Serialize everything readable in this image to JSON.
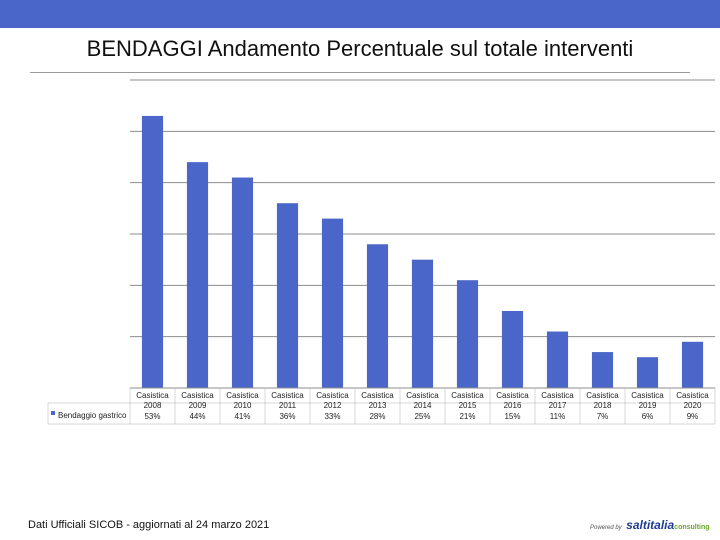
{
  "header": {
    "band_color": "#4a66c8",
    "title": "BENDAGGI Andamento Percentuale sul totale interventi"
  },
  "chart_data": {
    "type": "bar",
    "title": "BENDAGGI Andamento Percentuale sul totale interventi",
    "bar_color": "#4a66c8",
    "categories": [
      {
        "line1": "Casistica",
        "line2": "2008"
      },
      {
        "line1": "Casistica",
        "line2": "2009"
      },
      {
        "line1": "Casistica",
        "line2": "2010"
      },
      {
        "line1": "Casistica",
        "line2": "2011"
      },
      {
        "line1": "Casistica",
        "line2": "2012"
      },
      {
        "line1": "Casistica",
        "line2": "2013"
      },
      {
        "line1": "Casistica",
        "line2": "2014"
      },
      {
        "line1": "Casistica",
        "line2": "2015"
      },
      {
        "line1": "Casistica",
        "line2": "2016"
      },
      {
        "line1": "Casistica",
        "line2": "2017"
      },
      {
        "line1": "Casistica",
        "line2": "2018"
      },
      {
        "line1": "Casistica",
        "line2": "2019"
      },
      {
        "line1": "Casistica",
        "line2": "2020"
      }
    ],
    "series": [
      {
        "name": "Bendaggio gastrico",
        "values": [
          53,
          44,
          41,
          36,
          33,
          28,
          25,
          21,
          15,
          11,
          7,
          6,
          9
        ],
        "labels": [
          "53%",
          "44%",
          "41%",
          "36%",
          "33%",
          "28%",
          "25%",
          "21%",
          "15%",
          "11%",
          "7%",
          "6%",
          "9%"
        ]
      }
    ],
    "ylim": [
      0,
      60
    ],
    "y_grid_step": 10,
    "grid": true,
    "legend": "bottom-left table"
  },
  "footer": {
    "source_note": "Dati Ufficiali SICOB - aggiornati al 24 marzo 2021",
    "logo": {
      "powered": "Powered by",
      "brand": "saltitalia",
      "suffix": "consulting"
    }
  }
}
